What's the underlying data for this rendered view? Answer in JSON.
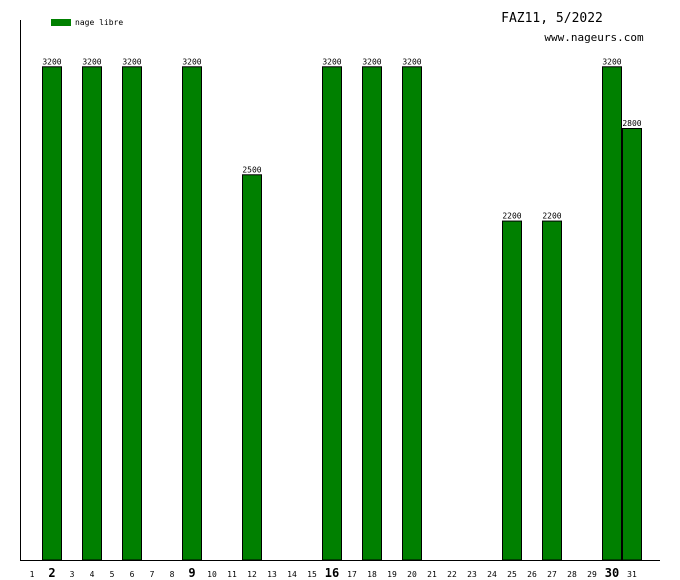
{
  "header": {
    "title": "FAZ11, 5/2022",
    "site": "www.nageurs.com"
  },
  "legend": {
    "label": "nage libre",
    "color": "#008000"
  },
  "chart_data": {
    "type": "bar",
    "title": "FAZ11, 5/2022",
    "xlabel": "",
    "ylabel": "",
    "ylim": [
      0,
      3500
    ],
    "grid": false,
    "legend_position": "top-left",
    "categories": [
      "1",
      "2",
      "3",
      "4",
      "5",
      "6",
      "7",
      "8",
      "9",
      "10",
      "11",
      "12",
      "13",
      "14",
      "15",
      "16",
      "17",
      "18",
      "19",
      "20",
      "21",
      "22",
      "23",
      "24",
      "25",
      "26",
      "27",
      "28",
      "29",
      "30",
      "31"
    ],
    "emphasized_days": [
      "2",
      "9",
      "16",
      "30"
    ],
    "series": [
      {
        "name": "nage libre",
        "color": "#008000",
        "values": [
          null,
          3200,
          null,
          3200,
          null,
          3200,
          null,
          null,
          3200,
          null,
          null,
          2500,
          null,
          null,
          null,
          3200,
          null,
          3200,
          null,
          3200,
          null,
          null,
          null,
          null,
          2200,
          null,
          2200,
          null,
          null,
          3200,
          2800
        ]
      }
    ]
  }
}
